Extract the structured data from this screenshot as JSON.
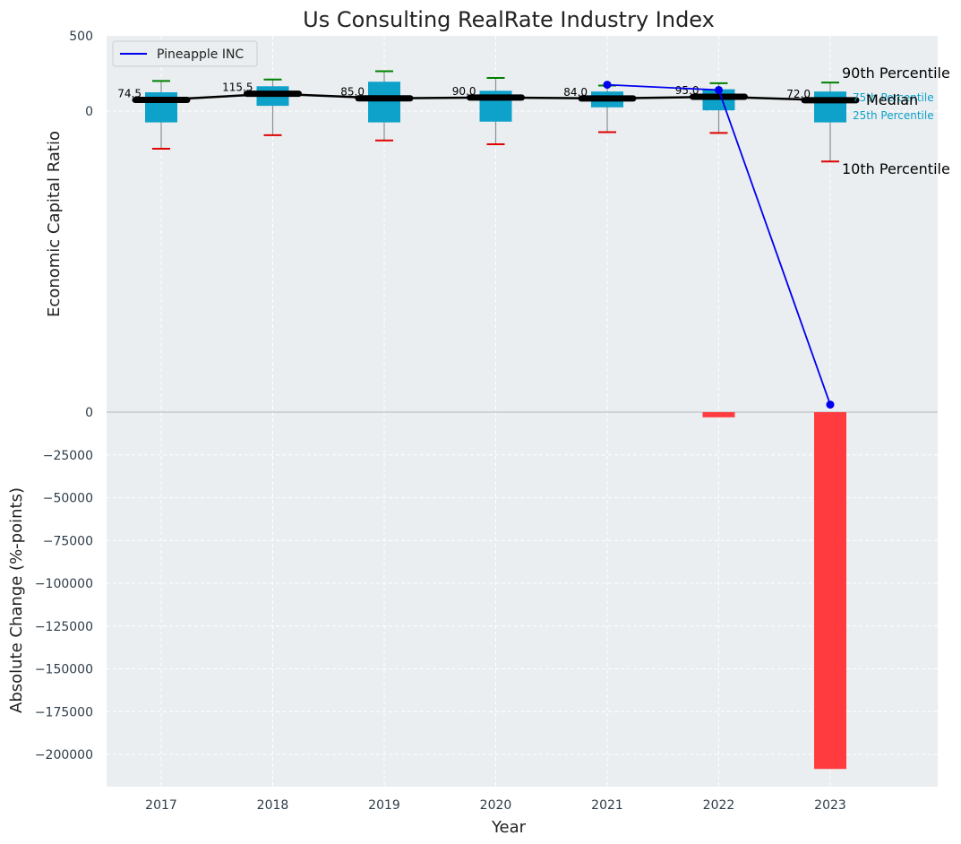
{
  "chart_data": {
    "type": "box-and-bar",
    "title": "Us Consulting RealRate Industry Index",
    "xlabel": "Year",
    "categories": [
      "2017",
      "2018",
      "2019",
      "2020",
      "2021",
      "2022",
      "2023"
    ],
    "colors": {
      "box": "#0ea1c9",
      "median": "#000000",
      "p90_cap": "#008000",
      "p10_cap": "#e00000",
      "company": "#0000ee",
      "bar": "#ff3b3f",
      "plot_bg": "#eaeef0",
      "grid": "#ffffff"
    },
    "top_panel": {
      "ylabel": "Economic Capital Ratio",
      "yticks": [
        "500",
        "0"
      ],
      "ylim": [
        -2000,
        500
      ],
      "boxes": [
        {
          "year": "2017",
          "p10": -250,
          "p25": -75,
          "median": 74.5,
          "p75": 125,
          "p90": 200
        },
        {
          "year": "2018",
          "p10": -160,
          "p25": 35,
          "median": 115.5,
          "p75": 165,
          "p90": 210
        },
        {
          "year": "2019",
          "p10": -195,
          "p25": -75,
          "median": 85.0,
          "p75": 195,
          "p90": 265
        },
        {
          "year": "2020",
          "p10": -220,
          "p25": -70,
          "median": 90.0,
          "p75": 135,
          "p90": 220
        },
        {
          "year": "2021",
          "p10": -140,
          "p25": 25,
          "median": 84.0,
          "p75": 130,
          "p90": 170
        },
        {
          "year": "2022",
          "p10": -145,
          "p25": 5,
          "median": 95.0,
          "p75": 145,
          "p90": 185
        },
        {
          "year": "2023",
          "p10": -335,
          "p25": -75,
          "median": 72.0,
          "p75": 130,
          "p90": 190
        }
      ],
      "median_labels": [
        "74.5",
        "115.5",
        "85.0",
        "90.0",
        "84.0",
        "95.0",
        "72.0"
      ],
      "company_series": {
        "name": "Pineapple INC",
        "x": [
          "2021",
          "2022",
          "2023"
        ],
        "y": [
          175,
          140,
          -1950
        ]
      },
      "annotations": {
        "p90": "90th Percentile",
        "p75": "75th Percentile",
        "median": "Median",
        "p25": "25th Percentile",
        "p10": "10th Percentile"
      }
    },
    "bottom_panel": {
      "ylabel": "Absolute Change (%-points)",
      "yticks": [
        "0",
        "−25000",
        "−50000",
        "−75000",
        "−100000",
        "−125000",
        "−150000",
        "−175000",
        "−200000"
      ],
      "ytick_values": [
        0,
        -25000,
        -50000,
        -75000,
        -100000,
        -125000,
        -150000,
        -175000,
        -200000
      ],
      "ylim": [
        -219000,
        0
      ],
      "bars": [
        {
          "year": "2022",
          "value": -3000
        },
        {
          "year": "2023",
          "value": -208500
        }
      ]
    },
    "legend": {
      "entries": [
        "Pineapple INC"
      ],
      "placement": "top-left"
    }
  }
}
